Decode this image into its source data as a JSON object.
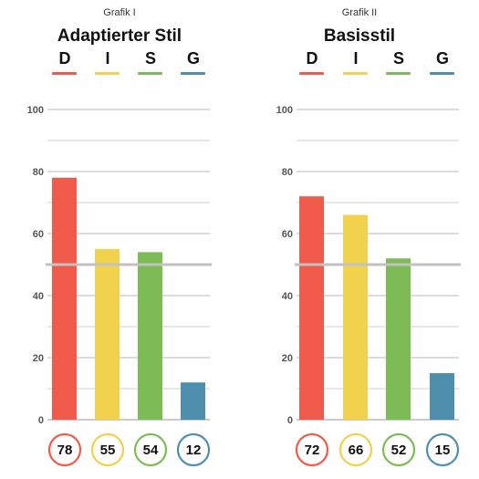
{
  "colors": {
    "D": "#f05a4b",
    "I": "#f2d24c",
    "S": "#7cbb56",
    "G": "#4f8fae"
  },
  "chart_data": [
    {
      "type": "bar",
      "caption": "Grafik I",
      "title": "Adaptierter Stil",
      "categories": [
        "D",
        "I",
        "S",
        "G"
      ],
      "values": [
        78,
        55,
        54,
        12
      ],
      "value_labels": [
        "78",
        "55",
        "54",
        "12"
      ],
      "ylim": [
        0,
        100
      ],
      "yticks": [
        "0",
        "20",
        "40",
        "60",
        "80",
        "100"
      ],
      "reference_line": 50,
      "grid": true
    },
    {
      "type": "bar",
      "caption": "Grafik II",
      "title": "Basisstil",
      "categories": [
        "D",
        "I",
        "S",
        "G"
      ],
      "values": [
        72,
        66,
        52,
        15
      ],
      "value_labels": [
        "72",
        "66",
        "52",
        "15"
      ],
      "ylim": [
        0,
        100
      ],
      "yticks": [
        "0",
        "20",
        "40",
        "60",
        "80",
        "100"
      ],
      "reference_line": 50,
      "grid": true
    }
  ]
}
